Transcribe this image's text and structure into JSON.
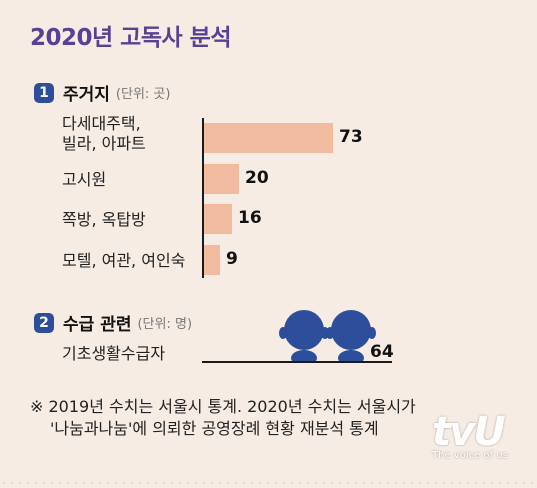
{
  "title": "2020년 고독사 분석",
  "section1": {
    "num": "1",
    "title": "주거지",
    "unit": "(단위: 곳)"
  },
  "section2": {
    "num": "2",
    "title": "수급 관련",
    "unit": "(단위: 명)"
  },
  "chart_data": [
    {
      "type": "bar",
      "orientation": "horizontal",
      "title": "주거지",
      "unit": "(단위: 곳)",
      "categories": [
        "다세대주택, 빌라, 아파트",
        "고시원",
        "쪽방, 옥탑방",
        "모텔, 여관, 여인숙"
      ],
      "category_lines": [
        [
          "다세대주택,",
          "빌라, 아파트"
        ],
        [
          "고시원"
        ],
        [
          "쪽방, 옥탑방"
        ],
        [
          "모텔, 여관, 여인숙"
        ]
      ],
      "values": [
        73,
        20,
        16,
        9
      ],
      "colors": {
        "bar": "#f1bba0",
        "axis": "#1a1a1a"
      },
      "xlim": [
        0,
        73
      ]
    },
    {
      "type": "pictograph",
      "title": "수급 관련",
      "unit": "(단위: 명)",
      "categories": [
        "기초생활수급자"
      ],
      "values": [
        64
      ],
      "icon": "person-icon",
      "colors": {
        "icon": "#2d4e9a"
      }
    }
  ],
  "note": {
    "line1": "※ 2019년 수치는 서울시 통계. 2020년 수치는 서울시가",
    "line2": "'나눔과나눔'에 의뢰한 공영장례 현황 재분석 통계"
  },
  "logo": {
    "main": "tvU",
    "sub": "The voice of us"
  }
}
